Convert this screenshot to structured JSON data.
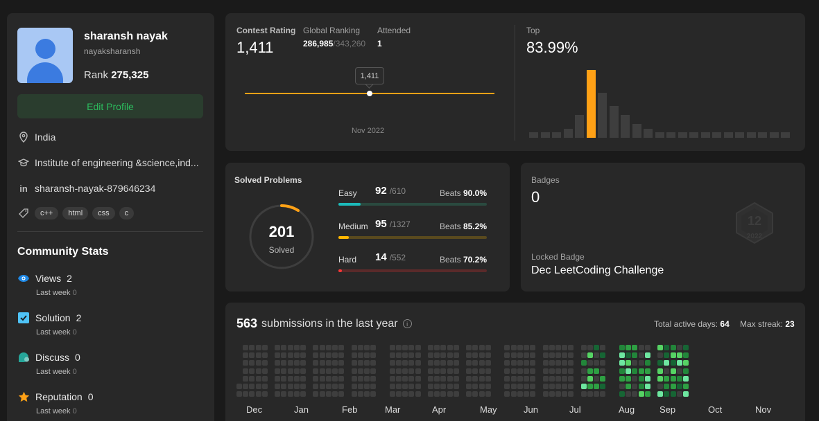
{
  "profile": {
    "name": "sharansh nayak",
    "handle": "nayaksharansh",
    "rank_label": "Rank",
    "rank_value": "275,325",
    "edit_label": "Edit Profile",
    "location": "India",
    "institute": "Institute of engineering &science,ind...",
    "linkedin": "sharansh-nayak-879646234",
    "skills": [
      "c++",
      "html",
      "css",
      "c"
    ]
  },
  "community": {
    "title": "Community Stats",
    "last_week_label": "Last week",
    "stats": [
      {
        "label": "Views",
        "value": "2",
        "last_week": "0",
        "icon": "eye-icon",
        "color": "#1e88e5"
      },
      {
        "label": "Solution",
        "value": "2",
        "last_week": "0",
        "icon": "solution-icon",
        "color": "#4fc3f7"
      },
      {
        "label": "Discuss",
        "value": "0",
        "last_week": "0",
        "icon": "discuss-icon",
        "color": "#26a69a"
      },
      {
        "label": "Reputation",
        "value": "0",
        "last_week": "0",
        "icon": "star-icon",
        "color": "#ffa116"
      }
    ]
  },
  "contest": {
    "rating_label": "Contest Rating",
    "rating_value": "1,411",
    "global_label": "Global Ranking",
    "global_value": "286,985",
    "global_total": "/343,260",
    "attended_label": "Attended",
    "attended_value": "1",
    "tooltip": "1,411",
    "date": "Nov 2022",
    "top_label": "Top",
    "top_value": "83.99%",
    "histogram": [
      1,
      1,
      1,
      2,
      5,
      15,
      10,
      7,
      5,
      3,
      2,
      1,
      1,
      1,
      1,
      1,
      1,
      1,
      1,
      1,
      1,
      1,
      1
    ],
    "highlight_index": 5,
    "accent": "#ffa116"
  },
  "solved": {
    "title": "Solved Problems",
    "count": "201",
    "count_label": "Solved",
    "beats_label": "Beats",
    "difficulties": [
      {
        "name": "Easy",
        "solved": "92",
        "total": "/610",
        "beats": "90.0%",
        "fraction": 0.151,
        "color": "#1cbaba",
        "track": "#2a4a3f"
      },
      {
        "name": "Medium",
        "solved": "95",
        "total": "/1327",
        "beats": "85.2%",
        "fraction": 0.072,
        "color": "#ffb700",
        "track": "#5a4a1e"
      },
      {
        "name": "Hard",
        "solved": "14",
        "total": "/552",
        "beats": "70.2%",
        "fraction": 0.025,
        "color": "#f63737",
        "track": "#5a2a2a"
      }
    ]
  },
  "badges": {
    "label": "Badges",
    "count": "0",
    "locked_label": "Locked Badge",
    "locked_name": "Dec LeetCoding Challenge",
    "badge_number": "12",
    "badge_year": "2022"
  },
  "submissions": {
    "count": "563",
    "text": "submissions in the last year",
    "active_label": "Total active days:",
    "active_value": "64",
    "streak_label": "Max streak:",
    "streak_value": "23",
    "months": [
      "Dec",
      "Jan",
      "Feb",
      "Mar",
      "Apr",
      "May",
      "Jun",
      "Jul",
      "Aug",
      "Sep",
      "Oct",
      "Nov"
    ]
  }
}
